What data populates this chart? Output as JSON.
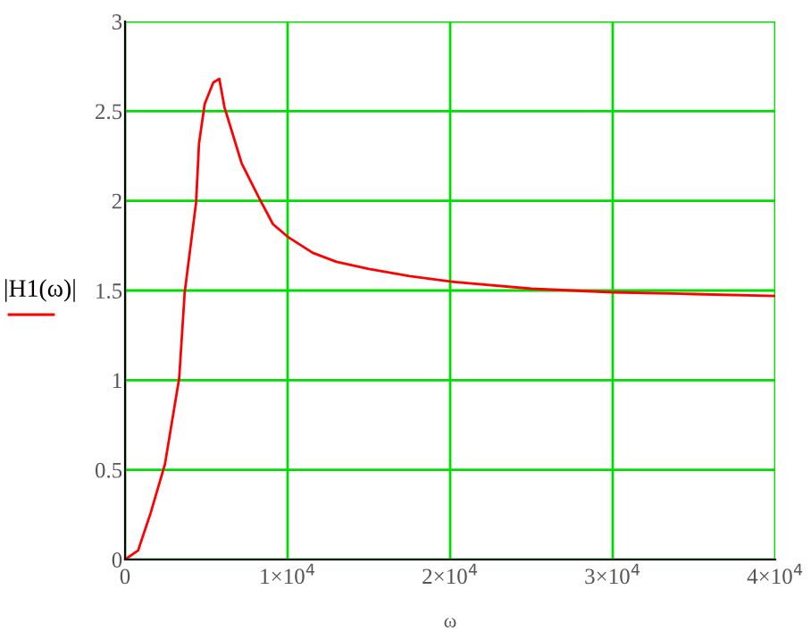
{
  "chart_data": {
    "type": "line",
    "ylabel": "|H1(ω)|",
    "xlabel": "ω",
    "x": [
      0,
      800,
      1575,
      2450,
      3330,
      3670,
      4370,
      4550,
      4900,
      5430,
      5800,
      6120,
      7170,
      8220,
      9100,
      10000,
      11550,
      13000,
      15000,
      17500,
      20000,
      25000,
      30000,
      35000,
      40000
    ],
    "series": [
      {
        "color": "#ff0000",
        "values": [
          0,
          0.05,
          0.26,
          0.53,
          1.01,
          1.49,
          1.99,
          2.32,
          2.54,
          2.66,
          2.68,
          2.52,
          2.21,
          2.02,
          1.87,
          1.8,
          1.71,
          1.66,
          1.62,
          1.58,
          1.55,
          1.51,
          1.49,
          1.48,
          1.47
        ]
      }
    ],
    "xlim": [
      0,
      40000
    ],
    "ylim": [
      0,
      3
    ],
    "xticks": [
      0,
      {
        "value": 10000,
        "label": "1×10$^{4}$"
      },
      {
        "value": 20000,
        "label": "2×10$^{4}$"
      },
      {
        "value": 30000,
        "label": "3×10$^{4}$"
      },
      {
        "value": 40000,
        "label": "4×10$^{4}$"
      }
    ],
    "yticks": [
      0,
      0.5,
      1,
      1.5,
      2,
      2.5,
      3
    ],
    "grid": true
  }
}
